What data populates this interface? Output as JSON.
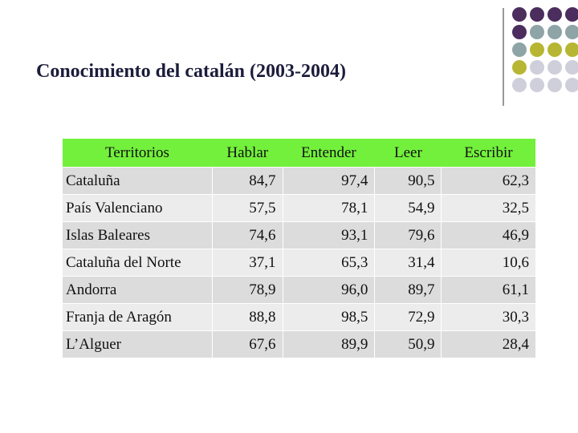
{
  "header": {
    "title": "Conocimiento del catalán (2003-2004)"
  },
  "table": {
    "columns": [
      "Territorios",
      "Hablar",
      "Entender",
      "Leer",
      "Escribir"
    ],
    "rows": [
      [
        "Cataluña",
        "84,7",
        "97,4",
        "90,5",
        "62,3"
      ],
      [
        "País Valenciano",
        "57,5",
        "78,1",
        "54,9",
        "32,5"
      ],
      [
        "Islas Baleares",
        "74,6",
        "93,1",
        "79,6",
        "46,9"
      ],
      [
        "Cataluña del Norte",
        "37,1",
        "65,3",
        "31,4",
        "10,6"
      ],
      [
        "Andorra",
        "78,9",
        "96,0",
        "89,7",
        "61,1"
      ],
      [
        "Franja de Aragón",
        "88,8",
        "98,5",
        "72,9",
        "30,3"
      ],
      [
        "L’Alguer",
        "67,6",
        "89,9",
        "50,9",
        "28,4"
      ]
    ]
  }
}
